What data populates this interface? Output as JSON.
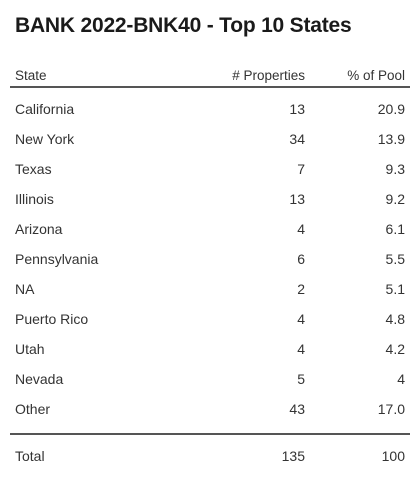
{
  "title": "BANK 2022-BNK40 - Top 10 States",
  "table": {
    "headers": {
      "state": "State",
      "properties": "# Properties",
      "pct_pool": "% of Pool"
    },
    "rows": [
      {
        "state": "California",
        "properties": "13",
        "pct": "20.9"
      },
      {
        "state": "New York",
        "properties": "34",
        "pct": "13.9"
      },
      {
        "state": "Texas",
        "properties": "7",
        "pct": "9.3"
      },
      {
        "state": "Illinois",
        "properties": "13",
        "pct": "9.2"
      },
      {
        "state": "Arizona",
        "properties": "4",
        "pct": "6.1"
      },
      {
        "state": "Pennsylvania",
        "properties": "6",
        "pct": "5.5"
      },
      {
        "state": "NA",
        "properties": "2",
        "pct": "5.1"
      },
      {
        "state": "Puerto Rico",
        "properties": "4",
        "pct": "4.8"
      },
      {
        "state": "Utah",
        "properties": "4",
        "pct": "4.2"
      },
      {
        "state": "Nevada",
        "properties": "5",
        "pct": "4"
      },
      {
        "state": "Other",
        "properties": "43",
        "pct": "17.0"
      }
    ],
    "total": {
      "label": "Total",
      "properties": "135",
      "pct": "100"
    }
  }
}
